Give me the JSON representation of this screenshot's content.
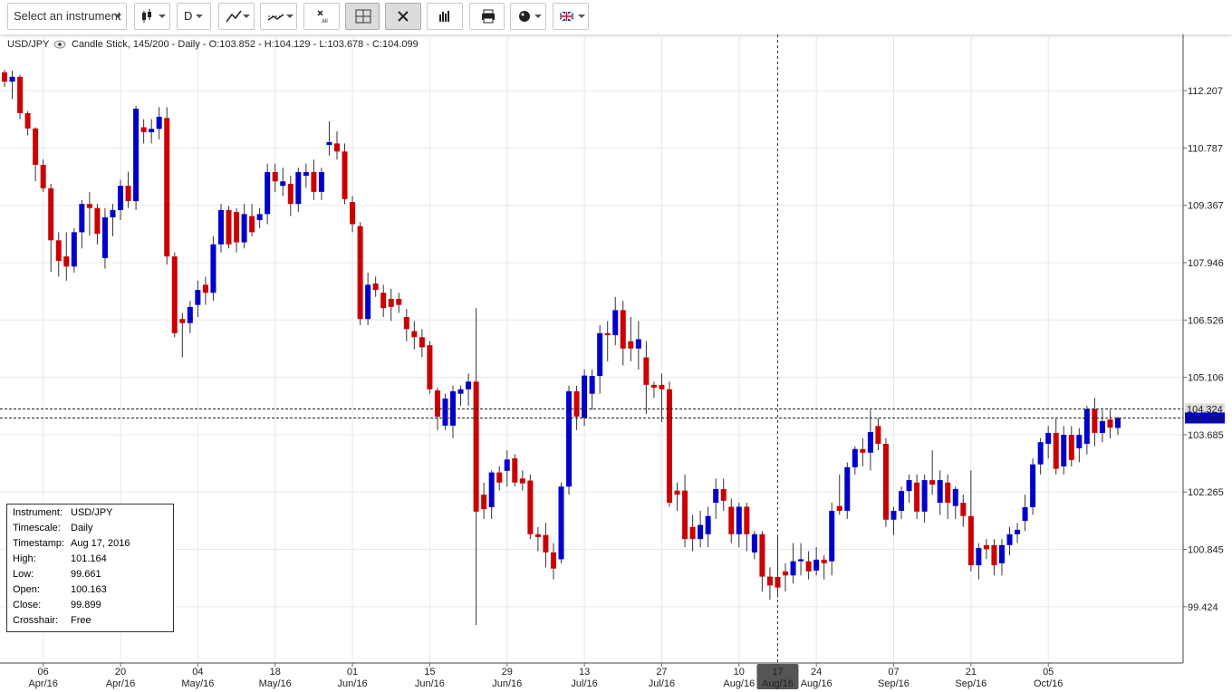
{
  "toolbar": {
    "instrument": "Select an instrument",
    "timescale": "D"
  },
  "legend": {
    "symbol": "USD/JPY",
    "text": "Candle Stick, 145/200 - Daily - O:103.852 - H:104.129 - L:103.678 - C:104.099"
  },
  "info_box": {
    "rows": [
      [
        "Instrument:",
        "USD/JPY"
      ],
      [
        "Timescale:",
        "Daily"
      ],
      [
        "Timestamp:",
        "Aug 17, 2016"
      ],
      [
        "High:",
        "101.164"
      ],
      [
        "Low:",
        "99.661"
      ],
      [
        "Open:",
        "100.163"
      ],
      [
        "Close:",
        "99.899"
      ],
      [
        "Crosshair:",
        "Free"
      ]
    ]
  },
  "chart_data": {
    "type": "candlestick",
    "up_color": "#0000cc",
    "down_color": "#cc0000",
    "wick_color": "#333333",
    "grid": true,
    "ylim": [
      98.03,
      113.6
    ],
    "yticks": [
      99.424,
      100.845,
      102.265,
      103.685,
      105.106,
      106.526,
      107.946,
      109.367,
      110.787,
      112.207
    ],
    "price_lines": [
      {
        "value": 104.324,
        "color": "#dddddd"
      },
      {
        "value": 104.099,
        "color": "#0000cc"
      }
    ],
    "categories": [
      null,
      null,
      null,
      null,
      null,
      "06 Apr/16",
      null,
      null,
      null,
      null,
      null,
      null,
      null,
      null,
      null,
      "20 Apr/16",
      null,
      null,
      null,
      null,
      null,
      null,
      null,
      null,
      null,
      "04 May/16",
      null,
      null,
      null,
      null,
      null,
      null,
      null,
      null,
      null,
      "18 May/16",
      null,
      null,
      null,
      null,
      null,
      null,
      null,
      null,
      null,
      "01 Jun/16",
      null,
      null,
      null,
      null,
      null,
      null,
      null,
      null,
      null,
      "15 Jun/16",
      null,
      null,
      null,
      null,
      null,
      null,
      null,
      null,
      null,
      "29 Jun/16",
      null,
      null,
      null,
      null,
      null,
      null,
      null,
      null,
      null,
      "13 Jul/16",
      null,
      null,
      null,
      null,
      null,
      null,
      null,
      null,
      null,
      "27 Jul/16",
      null,
      null,
      null,
      null,
      null,
      null,
      null,
      null,
      null,
      "10 Aug/16",
      null,
      null,
      null,
      null,
      "17 Aug/16",
      null,
      null,
      null,
      null,
      "24 Aug/16",
      null,
      null,
      null,
      null,
      null,
      null,
      null,
      null,
      null,
      "07 Sep/16",
      null,
      null,
      null,
      null,
      null,
      null,
      null,
      null,
      null,
      "21 Sep/16",
      null,
      null,
      null,
      null,
      null,
      null,
      null,
      null,
      null,
      "05 Oct/16",
      null,
      null,
      null,
      null,
      null,
      null,
      null,
      null,
      null
    ],
    "ohlc": [
      [
        112.66,
        112.72,
        112.3,
        112.43
      ],
      [
        112.43,
        112.7,
        112.0,
        112.55
      ],
      [
        112.55,
        112.6,
        111.5,
        111.65
      ],
      [
        111.65,
        111.7,
        111.1,
        111.27
      ],
      [
        111.27,
        111.3,
        109.96,
        110.37
      ],
      [
        110.37,
        110.5,
        109.7,
        109.79
      ],
      [
        109.79,
        109.9,
        107.72,
        108.5
      ],
      [
        108.5,
        108.7,
        107.6,
        107.99
      ],
      [
        108.1,
        108.7,
        107.5,
        107.85
      ],
      [
        107.85,
        108.8,
        107.7,
        108.7
      ],
      [
        108.7,
        109.5,
        108.3,
        109.4
      ],
      [
        109.4,
        109.7,
        108.62,
        109.3
      ],
      [
        109.3,
        109.4,
        108.4,
        108.66
      ],
      [
        108.06,
        109.3,
        107.8,
        109.07
      ],
      [
        109.07,
        109.4,
        108.6,
        109.25
      ],
      [
        109.25,
        110.0,
        109.0,
        109.85
      ],
      [
        109.85,
        110.2,
        109.3,
        109.47
      ],
      [
        109.47,
        111.82,
        109.25,
        111.76
      ],
      [
        111.3,
        111.5,
        110.9,
        111.18
      ],
      [
        111.18,
        111.5,
        110.9,
        111.26
      ],
      [
        111.26,
        111.8,
        111.0,
        111.56
      ],
      [
        111.53,
        111.8,
        107.9,
        108.1
      ],
      [
        108.1,
        108.2,
        106.1,
        106.2
      ],
      [
        106.55,
        106.7,
        105.6,
        106.45
      ],
      [
        106.45,
        107.0,
        106.2,
        106.85
      ],
      [
        106.9,
        107.5,
        106.6,
        107.27
      ],
      [
        107.4,
        107.6,
        106.9,
        107.2
      ],
      [
        107.2,
        108.6,
        107.0,
        108.4
      ],
      [
        108.4,
        109.4,
        108.2,
        109.25
      ],
      [
        109.25,
        109.35,
        108.3,
        108.4
      ],
      [
        109.2,
        109.3,
        108.2,
        108.45
      ],
      [
        108.45,
        109.4,
        108.3,
        109.15
      ],
      [
        109.1,
        109.4,
        108.6,
        108.7
      ],
      [
        109.0,
        109.3,
        108.8,
        109.15
      ],
      [
        109.15,
        110.4,
        108.9,
        110.19
      ],
      [
        110.19,
        110.4,
        109.7,
        109.96
      ],
      [
        109.85,
        110.3,
        109.6,
        109.96
      ],
      [
        109.9,
        110.1,
        109.1,
        109.4
      ],
      [
        109.4,
        110.3,
        109.2,
        110.19
      ],
      [
        110.1,
        110.4,
        109.8,
        110.19
      ],
      [
        110.19,
        110.5,
        109.5,
        109.7
      ],
      [
        109.7,
        110.3,
        109.5,
        110.19
      ],
      [
        110.86,
        111.45,
        110.6,
        110.93
      ],
      [
        110.9,
        111.2,
        110.5,
        110.7
      ],
      [
        110.7,
        110.9,
        109.4,
        109.52
      ],
      [
        109.45,
        109.6,
        108.7,
        108.9
      ],
      [
        108.85,
        108.95,
        106.4,
        106.55
      ],
      [
        106.55,
        107.7,
        106.4,
        107.4
      ],
      [
        107.43,
        107.6,
        107.1,
        107.27
      ],
      [
        107.2,
        107.4,
        106.6,
        106.82
      ],
      [
        107.05,
        107.3,
        106.5,
        106.85
      ],
      [
        107.05,
        107.2,
        106.7,
        106.9
      ],
      [
        106.6,
        106.8,
        106.0,
        106.3
      ],
      [
        106.25,
        106.5,
        105.8,
        106.1
      ],
      [
        106.1,
        106.3,
        105.6,
        105.85
      ],
      [
        105.9,
        106.0,
        104.7,
        104.81
      ],
      [
        104.78,
        104.85,
        103.8,
        104.13
      ],
      [
        103.91,
        104.7,
        103.8,
        104.58
      ],
      [
        103.91,
        104.9,
        103.6,
        104.76
      ],
      [
        104.7,
        104.9,
        104.4,
        104.81
      ],
      [
        104.81,
        105.2,
        104.4,
        105.0
      ],
      [
        105.0,
        106.82,
        98.97,
        101.78
      ],
      [
        102.2,
        102.5,
        101.6,
        101.84
      ],
      [
        101.89,
        102.8,
        101.6,
        102.75
      ],
      [
        102.75,
        102.9,
        102.3,
        102.5
      ],
      [
        102.79,
        103.3,
        102.4,
        103.07
      ],
      [
        103.1,
        103.2,
        102.4,
        102.5
      ],
      [
        102.6,
        102.8,
        102.3,
        102.48
      ],
      [
        102.55,
        102.7,
        101.1,
        101.22
      ],
      [
        101.22,
        101.4,
        100.8,
        101.15
      ],
      [
        101.2,
        101.5,
        100.4,
        100.77
      ],
      [
        100.77,
        101.0,
        100.1,
        100.37
      ],
      [
        100.6,
        102.5,
        100.5,
        102.4
      ],
      [
        102.4,
        104.9,
        102.2,
        104.76
      ],
      [
        104.76,
        104.9,
        103.8,
        104.13
      ],
      [
        104.1,
        105.3,
        103.9,
        105.15
      ],
      [
        104.7,
        105.3,
        104.3,
        105.14
      ],
      [
        105.14,
        106.4,
        104.7,
        106.2
      ],
      [
        106.2,
        106.5,
        105.5,
        106.15
      ],
      [
        106.15,
        107.1,
        105.9,
        106.77
      ],
      [
        106.77,
        107.0,
        105.4,
        105.82
      ],
      [
        106.0,
        106.6,
        105.5,
        105.82
      ],
      [
        105.82,
        106.5,
        105.3,
        106.05
      ],
      [
        105.6,
        106.0,
        104.2,
        104.92
      ],
      [
        104.92,
        105.0,
        104.6,
        104.85
      ],
      [
        104.92,
        105.2,
        104.0,
        104.81
      ],
      [
        104.81,
        105.0,
        101.9,
        102.0
      ],
      [
        102.3,
        102.5,
        101.8,
        102.2
      ],
      [
        102.3,
        102.7,
        100.9,
        101.1
      ],
      [
        101.4,
        101.7,
        100.8,
        101.1
      ],
      [
        101.1,
        101.8,
        100.9,
        101.45
      ],
      [
        101.22,
        101.9,
        100.9,
        101.67
      ],
      [
        102.0,
        102.6,
        101.6,
        102.34
      ],
      [
        102.34,
        102.6,
        101.8,
        102.05
      ],
      [
        101.9,
        102.1,
        101.0,
        101.22
      ],
      [
        101.22,
        102.0,
        100.9,
        101.9
      ],
      [
        101.9,
        102.0,
        100.8,
        101.22
      ],
      [
        100.77,
        101.3,
        100.6,
        101.22
      ],
      [
        101.22,
        101.3,
        99.8,
        100.17
      ],
      [
        100.17,
        100.4,
        99.6,
        99.95
      ],
      [
        100.163,
        101.164,
        99.661,
        99.899
      ],
      [
        100.3,
        100.5,
        99.8,
        100.2
      ],
      [
        100.2,
        101.0,
        100.0,
        100.55
      ],
      [
        100.55,
        101.0,
        100.2,
        100.6
      ],
      [
        100.55,
        100.8,
        100.1,
        100.3
      ],
      [
        100.32,
        100.9,
        100.2,
        100.59
      ],
      [
        100.59,
        100.7,
        100.1,
        100.5
      ],
      [
        100.55,
        102.0,
        100.2,
        101.8
      ],
      [
        101.92,
        102.7,
        101.7,
        101.8
      ],
      [
        101.8,
        103.0,
        101.6,
        102.88
      ],
      [
        102.88,
        103.4,
        102.7,
        103.33
      ],
      [
        103.33,
        103.6,
        102.9,
        103.24
      ],
      [
        103.24,
        104.3,
        102.8,
        103.75
      ],
      [
        103.9,
        104.1,
        103.3,
        103.46
      ],
      [
        103.46,
        103.6,
        101.4,
        101.58
      ],
      [
        101.58,
        101.9,
        101.2,
        101.8
      ],
      [
        101.8,
        102.4,
        101.6,
        102.29
      ],
      [
        102.29,
        102.7,
        102.0,
        102.56
      ],
      [
        102.5,
        102.7,
        101.6,
        101.78
      ],
      [
        101.78,
        102.7,
        101.5,
        102.56
      ],
      [
        102.56,
        103.3,
        102.2,
        102.45
      ],
      [
        102.0,
        102.8,
        101.7,
        102.56
      ],
      [
        102.5,
        102.7,
        101.6,
        102.0
      ],
      [
        101.92,
        102.4,
        101.6,
        102.34
      ],
      [
        102.0,
        102.2,
        101.4,
        101.67
      ],
      [
        101.67,
        102.8,
        100.3,
        100.45
      ],
      [
        100.45,
        101.0,
        100.1,
        100.88
      ],
      [
        100.95,
        101.1,
        100.6,
        100.85
      ],
      [
        100.95,
        101.1,
        100.2,
        100.45
      ],
      [
        100.5,
        101.1,
        100.2,
        100.95
      ],
      [
        100.95,
        101.4,
        100.7,
        101.22
      ],
      [
        101.22,
        101.5,
        101.0,
        101.33
      ],
      [
        101.55,
        102.2,
        101.3,
        101.89
      ],
      [
        101.89,
        103.1,
        101.7,
        102.95
      ],
      [
        102.95,
        103.6,
        102.7,
        103.5
      ],
      [
        103.46,
        103.9,
        103.1,
        103.73
      ],
      [
        103.73,
        104.1,
        102.7,
        102.84
      ],
      [
        102.9,
        103.9,
        102.7,
        103.68
      ],
      [
        103.68,
        103.9,
        102.9,
        103.06
      ],
      [
        103.35,
        103.85,
        103.0,
        103.68
      ],
      [
        103.46,
        104.4,
        103.2,
        104.32
      ],
      [
        104.32,
        104.6,
        103.4,
        103.73
      ],
      [
        103.73,
        104.3,
        103.5,
        104.02
      ],
      [
        104.06,
        104.3,
        103.6,
        103.86
      ],
      [
        103.852,
        104.129,
        103.678,
        104.099
      ]
    ]
  }
}
